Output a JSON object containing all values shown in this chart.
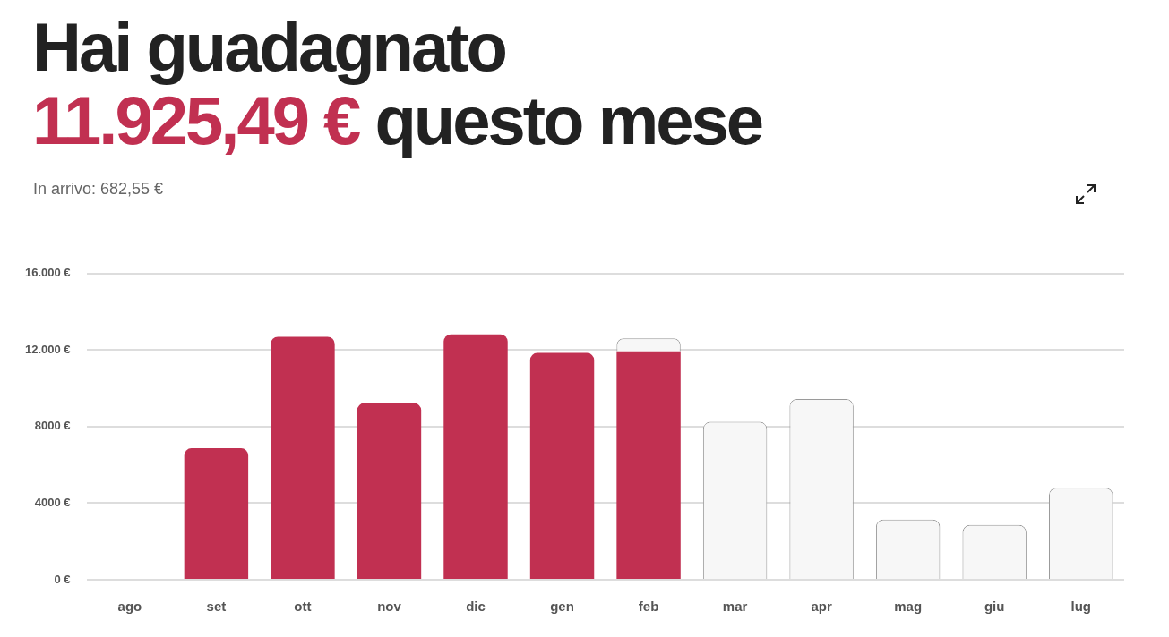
{
  "chart_data": {
    "type": "bar",
    "title": "Hai guadagnato",
    "subtitle": "11.925,49 € questo mese",
    "annotations": [
      "In arrivo: 682,55 €"
    ],
    "categories": [
      "ago",
      "set",
      "ott",
      "nov",
      "dic",
      "gen",
      "feb",
      "mar",
      "apr",
      "mag",
      "giu",
      "lug"
    ],
    "stacked": true,
    "series": [
      {
        "color": "#c13051",
        "values": [
          null,
          6870,
          12700,
          9230,
          12820,
          11850,
          11930,
          null,
          null,
          null,
          null,
          null
        ]
      },
      {
        "color": "#f7f7f7",
        "values": [
          null,
          null,
          null,
          null,
          null,
          null,
          680,
          8250,
          9440,
          3150,
          2860,
          4810
        ]
      }
    ],
    "ylim": [
      0,
      16000
    ],
    "yticks": [
      {
        "value": 0,
        "label": "0 €"
      },
      {
        "value": 4000,
        "label": "4000 €"
      },
      {
        "value": 8000,
        "label": "8000 €"
      },
      {
        "value": 12000,
        "label": "12.000 €"
      },
      {
        "value": 16000,
        "label": "16.000 €"
      }
    ],
    "grid": "y",
    "legend": false
  }
}
